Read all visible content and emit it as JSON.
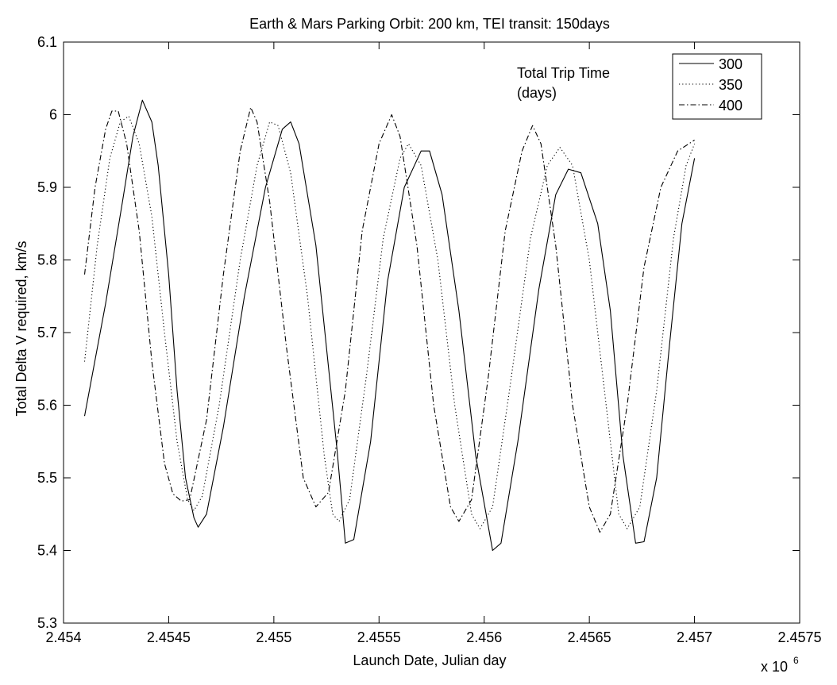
{
  "chart_data": {
    "type": "line",
    "title": "Earth & Mars Parking Orbit: 200 km, TEI transit: 150days",
    "xlabel": "Launch Date, Julian day",
    "ylabel": "Total Delta V required, km/s",
    "x_multiplier_label": "x 10",
    "x_multiplier_exp": "6",
    "xlim": [
      2454000,
      2457500
    ],
    "ylim": [
      5.3,
      6.1
    ],
    "xticks": [
      2454000,
      2454500,
      2455000,
      2455500,
      2456000,
      2456500,
      2457000,
      2457500
    ],
    "xtick_labels": [
      "2.454",
      "2.4545",
      "2.455",
      "2.4555",
      "2.456",
      "2.4565",
      "2.457",
      "2.4575"
    ],
    "yticks": [
      5.3,
      5.4,
      5.5,
      5.6,
      5.7,
      5.8,
      5.9,
      6.0,
      6.1
    ],
    "ytick_labels": [
      "5.3",
      "5.4",
      "5.5",
      "5.6",
      "5.7",
      "5.8",
      "5.9",
      "6",
      "6.1"
    ],
    "grid": false,
    "legend_title": [
      "Total Trip Time",
      "(days)"
    ],
    "legend_position": "top-right",
    "series": [
      {
        "name": "300",
        "style": "solid",
        "color": "#000000",
        "points": [
          [
            2454100,
            5.585
          ],
          [
            2454200,
            5.74
          ],
          [
            2454280,
            5.88
          ],
          [
            2454330,
            5.97
          ],
          [
            2454375,
            6.02
          ],
          [
            2454420,
            5.99
          ],
          [
            2454450,
            5.93
          ],
          [
            2454500,
            5.78
          ],
          [
            2454540,
            5.62
          ],
          [
            2454580,
            5.5
          ],
          [
            2454620,
            5.445
          ],
          [
            2454640,
            5.432
          ],
          [
            2454680,
            5.45
          ],
          [
            2454760,
            5.57
          ],
          [
            2454860,
            5.75
          ],
          [
            2454960,
            5.9
          ],
          [
            2455040,
            5.98
          ],
          [
            2455080,
            5.99
          ],
          [
            2455120,
            5.96
          ],
          [
            2455200,
            5.82
          ],
          [
            2455300,
            5.54
          ],
          [
            2455340,
            5.41
          ],
          [
            2455380,
            5.415
          ],
          [
            2455460,
            5.55
          ],
          [
            2455540,
            5.77
          ],
          [
            2455620,
            5.9
          ],
          [
            2455700,
            5.95
          ],
          [
            2455740,
            5.95
          ],
          [
            2455800,
            5.89
          ],
          [
            2455880,
            5.73
          ],
          [
            2455960,
            5.53
          ],
          [
            2456040,
            5.4
          ],
          [
            2456080,
            5.41
          ],
          [
            2456160,
            5.55
          ],
          [
            2456260,
            5.76
          ],
          [
            2456340,
            5.89
          ],
          [
            2456400,
            5.925
          ],
          [
            2456460,
            5.92
          ],
          [
            2456540,
            5.85
          ],
          [
            2456600,
            5.73
          ],
          [
            2456660,
            5.53
          ],
          [
            2456720,
            5.41
          ],
          [
            2456760,
            5.412
          ],
          [
            2456820,
            5.5
          ],
          [
            2456880,
            5.68
          ],
          [
            2456940,
            5.85
          ],
          [
            2457000,
            5.94
          ]
        ]
      },
      {
        "name": "350",
        "style": "dotted",
        "color": "#000000",
        "points": [
          [
            2454100,
            5.66
          ],
          [
            2454160,
            5.82
          ],
          [
            2454220,
            5.94
          ],
          [
            2454270,
            5.99
          ],
          [
            2454310,
            5.998
          ],
          [
            2454360,
            5.96
          ],
          [
            2454420,
            5.86
          ],
          [
            2454480,
            5.7
          ],
          [
            2454540,
            5.55
          ],
          [
            2454590,
            5.47
          ],
          [
            2454620,
            5.455
          ],
          [
            2454660,
            5.475
          ],
          [
            2454740,
            5.6
          ],
          [
            2454840,
            5.8
          ],
          [
            2454920,
            5.93
          ],
          [
            2454980,
            5.99
          ],
          [
            2455020,
            5.985
          ],
          [
            2455080,
            5.92
          ],
          [
            2455160,
            5.75
          ],
          [
            2455240,
            5.53
          ],
          [
            2455280,
            5.45
          ],
          [
            2455310,
            5.44
          ],
          [
            2455360,
            5.47
          ],
          [
            2455440,
            5.64
          ],
          [
            2455520,
            5.83
          ],
          [
            2455600,
            5.94
          ],
          [
            2455640,
            5.96
          ],
          [
            2455700,
            5.93
          ],
          [
            2455780,
            5.8
          ],
          [
            2455860,
            5.6
          ],
          [
            2455940,
            5.45
          ],
          [
            2455980,
            5.43
          ],
          [
            2456040,
            5.46
          ],
          [
            2456120,
            5.62
          ],
          [
            2456220,
            5.83
          ],
          [
            2456300,
            5.93
          ],
          [
            2456360,
            5.955
          ],
          [
            2456420,
            5.93
          ],
          [
            2456500,
            5.8
          ],
          [
            2456580,
            5.6
          ],
          [
            2456640,
            5.45
          ],
          [
            2456680,
            5.43
          ],
          [
            2456740,
            5.46
          ],
          [
            2456820,
            5.62
          ],
          [
            2456900,
            5.83
          ],
          [
            2456960,
            5.93
          ],
          [
            2457000,
            5.96
          ]
        ]
      },
      {
        "name": "400",
        "style": "dashdot",
        "color": "#000000",
        "points": [
          [
            2454100,
            5.78
          ],
          [
            2454150,
            5.9
          ],
          [
            2454200,
            5.98
          ],
          [
            2454230,
            6.005
          ],
          [
            2454260,
            6.005
          ],
          [
            2454300,
            5.96
          ],
          [
            2454360,
            5.84
          ],
          [
            2454420,
            5.66
          ],
          [
            2454480,
            5.52
          ],
          [
            2454520,
            5.478
          ],
          [
            2454560,
            5.468
          ],
          [
            2454600,
            5.47
          ],
          [
            2454680,
            5.58
          ],
          [
            2454760,
            5.78
          ],
          [
            2454840,
            5.95
          ],
          [
            2454890,
            6.01
          ],
          [
            2454920,
            5.99
          ],
          [
            2454980,
            5.88
          ],
          [
            2455060,
            5.68
          ],
          [
            2455140,
            5.5
          ],
          [
            2455200,
            5.46
          ],
          [
            2455260,
            5.48
          ],
          [
            2455340,
            5.62
          ],
          [
            2455420,
            5.84
          ],
          [
            2455500,
            5.96
          ],
          [
            2455560,
            6.0
          ],
          [
            2455600,
            5.97
          ],
          [
            2455680,
            5.82
          ],
          [
            2455760,
            5.6
          ],
          [
            2455840,
            5.46
          ],
          [
            2455880,
            5.44
          ],
          [
            2455940,
            5.47
          ],
          [
            2456020,
            5.64
          ],
          [
            2456100,
            5.84
          ],
          [
            2456180,
            5.95
          ],
          [
            2456230,
            5.985
          ],
          [
            2456270,
            5.96
          ],
          [
            2456340,
            5.82
          ],
          [
            2456420,
            5.6
          ],
          [
            2456500,
            5.46
          ],
          [
            2456550,
            5.425
          ],
          [
            2456600,
            5.45
          ],
          [
            2456680,
            5.6
          ],
          [
            2456760,
            5.79
          ],
          [
            2456840,
            5.9
          ],
          [
            2456920,
            5.95
          ],
          [
            2457000,
            5.965
          ]
        ]
      }
    ]
  }
}
